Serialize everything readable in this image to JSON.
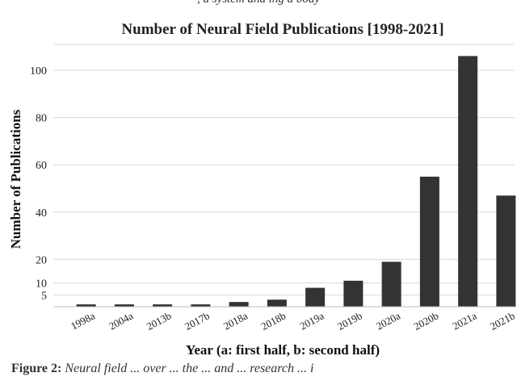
{
  "top_caption": ", a system                                    and                                   ing a body",
  "bottom_caption": {
    "label": "Figure 2:",
    "text": " Neural field ... over ... the ... and ... research ... i"
  },
  "chart_data": {
    "type": "bar",
    "title": "Number of Neural Field Publications [1998-2021]",
    "xlabel": "Year (a: first half, b: second half)",
    "ylabel": "Number of Publications",
    "categories": [
      "1998a",
      "2004a",
      "2013b",
      "2017b",
      "2018a",
      "2018b",
      "2019a",
      "2019b",
      "2020a",
      "2020b",
      "2021a",
      "2021b"
    ],
    "values": [
      1,
      1,
      1,
      1,
      2,
      3,
      8,
      11,
      19,
      55,
      106,
      47
    ],
    "yticks": [
      5,
      10,
      20,
      40,
      60,
      80,
      100
    ],
    "ylim": [
      0,
      110
    ],
    "grid": true,
    "bar_color": "#333333",
    "grid_color": "#d9d9d9"
  }
}
